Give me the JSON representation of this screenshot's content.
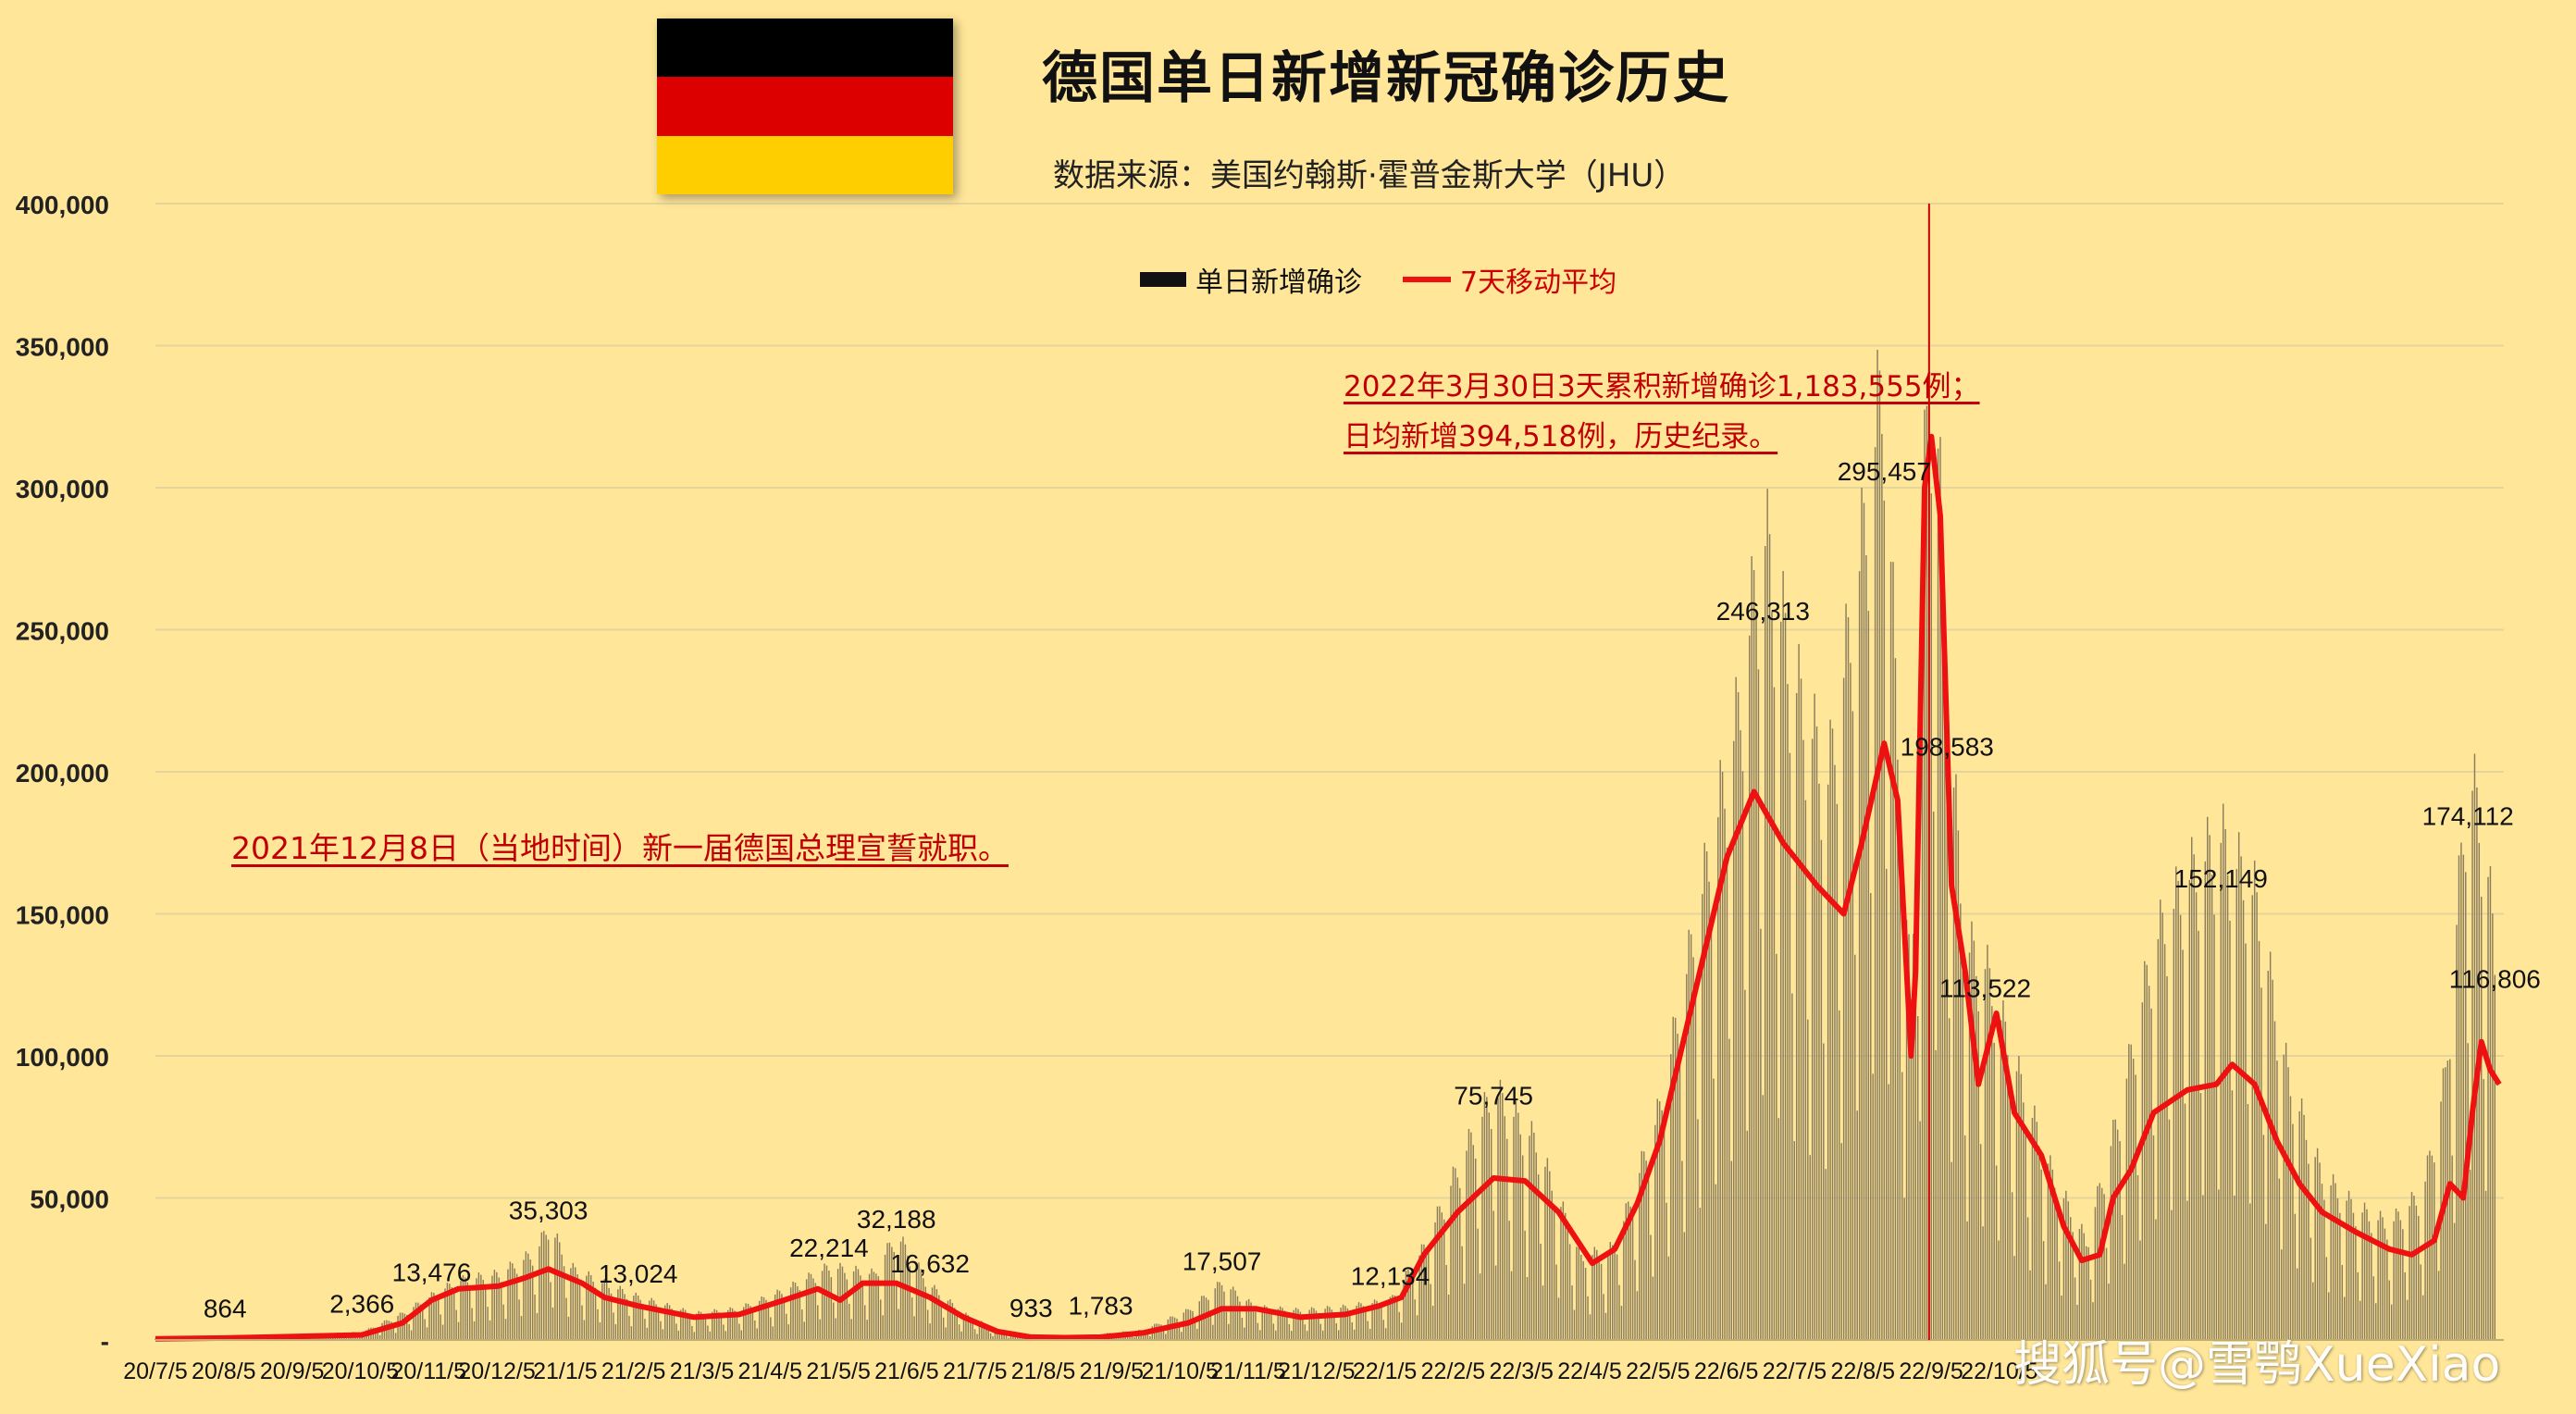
{
  "title": "德国单日新增新冠确诊历史",
  "subtitle": "数据来源：美国约翰斯·霍普金斯大学（JHU）",
  "watermark": "搜狐号@雪鹗XueXiao",
  "flag_colors": [
    "#000000",
    "#dd0000",
    "#ffce00"
  ],
  "colors": {
    "background": "#ffe699",
    "bars": "#8c7e5c",
    "line": "#ee1111",
    "annotation": "#c00000",
    "grid": "#e6d59a"
  },
  "annotations": {
    "record_line1": "2022年3月30日3天累积新增确诊1,183,555例；",
    "record_line2": "日均新增394,518例，历史纪录。",
    "chancellor": "2021年12月8日（当地时间）新一届德国总理宣誓就职。"
  },
  "chart_data": {
    "type": "bar",
    "title": "德国单日新增新冠确诊历史",
    "xlabel": "",
    "ylabel": "",
    "ylim": [
      0,
      400000
    ],
    "yticks": [
      0,
      50000,
      100000,
      150000,
      200000,
      250000,
      300000,
      350000,
      400000
    ],
    "ytick_labels": [
      "-",
      "50,000",
      "100,000",
      "150,000",
      "200,000",
      "250,000",
      "300,000",
      "350,000",
      "400,000"
    ],
    "xtick_labels": [
      "20/7/5",
      "20/8/5",
      "20/9/5",
      "20/10/5",
      "20/11/5",
      "20/12/5",
      "21/1/5",
      "21/2/5",
      "21/3/5",
      "21/4/5",
      "21/5/5",
      "21/6/5",
      "21/7/5",
      "21/8/5",
      "21/9/5",
      "21/10/5",
      "21/11/5",
      "21/12/5",
      "22/1/5",
      "22/2/5",
      "22/3/5",
      "22/4/5",
      "22/5/5",
      "22/6/5",
      "22/7/5",
      "22/8/5",
      "22/9/5",
      "22/10/5"
    ],
    "grid": true,
    "legend": "top-center",
    "series": [
      {
        "name": "单日新增确诊",
        "type": "bar",
        "anchors": [
          [
            0,
            500
          ],
          [
            31,
            864
          ],
          [
            62,
            1500
          ],
          [
            92,
            2366
          ],
          [
            110,
            8000
          ],
          [
            123,
            13476
          ],
          [
            135,
            18000
          ],
          [
            153,
            20000
          ],
          [
            170,
            27000
          ],
          [
            175,
            35303
          ],
          [
            185,
            22000
          ],
          [
            197,
            18000
          ],
          [
            215,
            13024
          ],
          [
            240,
            8000
          ],
          [
            260,
            9500
          ],
          [
            280,
            15000
          ],
          [
            300,
            22214
          ],
          [
            320,
            20000
          ],
          [
            330,
            32188
          ],
          [
            345,
            16632
          ],
          [
            360,
            8000
          ],
          [
            375,
            3000
          ],
          [
            390,
            933
          ],
          [
            405,
            700
          ],
          [
            421,
            1783
          ],
          [
            440,
            3000
          ],
          [
            460,
            9000
          ],
          [
            475,
            17507
          ],
          [
            490,
            10000
          ],
          [
            510,
            9000
          ],
          [
            530,
            10000
          ],
          [
            550,
            12134
          ],
          [
            565,
            28000
          ],
          [
            580,
            52000
          ],
          [
            596,
            75745
          ],
          [
            615,
            60000
          ],
          [
            635,
            25000
          ],
          [
            650,
            28000
          ],
          [
            670,
            70000
          ],
          [
            690,
            140000
          ],
          [
            705,
            190000
          ],
          [
            716,
            246313
          ],
          [
            730,
            200000
          ],
          [
            745,
            170000
          ],
          [
            760,
            240000
          ],
          [
            770,
            295457
          ],
          [
            775,
            200000
          ],
          [
            782,
            100000
          ],
          [
            787,
            250000
          ],
          [
            792,
            310000
          ],
          [
            798,
            198583
          ],
          [
            806,
            120000
          ],
          [
            815,
            113522
          ],
          [
            830,
            80000
          ],
          [
            845,
            50000
          ],
          [
            860,
            30000
          ],
          [
            875,
            70000
          ],
          [
            890,
            120000
          ],
          [
            905,
            140000
          ],
          [
            920,
            152149
          ],
          [
            935,
            135000
          ],
          [
            950,
            80000
          ],
          [
            965,
            50000
          ],
          [
            980,
            40000
          ],
          [
            995,
            35000
          ],
          [
            1010,
            45000
          ],
          [
            1020,
            80000
          ],
          [
            1030,
            174112
          ],
          [
            1038,
            150000
          ],
          [
            1042,
            116806
          ]
        ]
      },
      {
        "name": "7天移动平均",
        "type": "line",
        "points": [
          [
            0,
            400
          ],
          [
            31,
            700
          ],
          [
            62,
            1200
          ],
          [
            92,
            1800
          ],
          [
            110,
            6000
          ],
          [
            123,
            14000
          ],
          [
            135,
            18000
          ],
          [
            153,
            19000
          ],
          [
            165,
            22000
          ],
          [
            175,
            25000
          ],
          [
            190,
            20000
          ],
          [
            200,
            15000
          ],
          [
            215,
            12000
          ],
          [
            240,
            8000
          ],
          [
            260,
            9000
          ],
          [
            280,
            14000
          ],
          [
            295,
            18000
          ],
          [
            305,
            14000
          ],
          [
            315,
            20000
          ],
          [
            330,
            20000
          ],
          [
            345,
            15000
          ],
          [
            360,
            8000
          ],
          [
            375,
            3000
          ],
          [
            390,
            1000
          ],
          [
            405,
            800
          ],
          [
            421,
            1000
          ],
          [
            440,
            2500
          ],
          [
            460,
            6000
          ],
          [
            475,
            11000
          ],
          [
            490,
            11000
          ],
          [
            510,
            8000
          ],
          [
            530,
            9000
          ],
          [
            545,
            12000
          ],
          [
            555,
            15000
          ],
          [
            565,
            30000
          ],
          [
            580,
            45000
          ],
          [
            596,
            57000
          ],
          [
            610,
            56000
          ],
          [
            625,
            45000
          ],
          [
            640,
            27000
          ],
          [
            650,
            32000
          ],
          [
            660,
            48000
          ],
          [
            670,
            70000
          ],
          [
            685,
            120000
          ],
          [
            700,
            170000
          ],
          [
            712,
            193000
          ],
          [
            725,
            175000
          ],
          [
            740,
            160000
          ],
          [
            752,
            150000
          ],
          [
            760,
            175000
          ],
          [
            770,
            210000
          ],
          [
            776,
            190000
          ],
          [
            782,
            100000
          ],
          [
            784,
            130000
          ],
          [
            788,
            300000
          ],
          [
            791,
            318000
          ],
          [
            795,
            290000
          ],
          [
            800,
            160000
          ],
          [
            806,
            130000
          ],
          [
            812,
            90000
          ],
          [
            820,
            115000
          ],
          [
            828,
            80000
          ],
          [
            840,
            65000
          ],
          [
            850,
            40000
          ],
          [
            858,
            28000
          ],
          [
            866,
            30000
          ],
          [
            872,
            50000
          ],
          [
            880,
            60000
          ],
          [
            890,
            80000
          ],
          [
            905,
            88000
          ],
          [
            918,
            90000
          ],
          [
            925,
            97000
          ],
          [
            935,
            90000
          ],
          [
            945,
            70000
          ],
          [
            955,
            55000
          ],
          [
            965,
            45000
          ],
          [
            980,
            38000
          ],
          [
            995,
            32000
          ],
          [
            1005,
            30000
          ],
          [
            1015,
            35000
          ],
          [
            1022,
            55000
          ],
          [
            1028,
            50000
          ],
          [
            1032,
            80000
          ],
          [
            1036,
            105000
          ],
          [
            1040,
            95000
          ],
          [
            1044,
            90000
          ]
        ]
      }
    ],
    "data_labels": [
      {
        "x": 31,
        "text": "864"
      },
      {
        "x": 92,
        "text": "2,366"
      },
      {
        "x": 123,
        "text": "13,476"
      },
      {
        "x": 175,
        "text": "35,303"
      },
      {
        "x": 215,
        "text": "13,024"
      },
      {
        "x": 300,
        "text": "22,214"
      },
      {
        "x": 330,
        "text": "32,188"
      },
      {
        "x": 345,
        "text": "16,632"
      },
      {
        "x": 390,
        "text": "933"
      },
      {
        "x": 421,
        "text": "1,783"
      },
      {
        "x": 475,
        "text": "17,507"
      },
      {
        "x": 550,
        "text": "12,134"
      },
      {
        "x": 596,
        "text": "75,745"
      },
      {
        "x": 716,
        "text": "246,313"
      },
      {
        "x": 770,
        "text": "295,457"
      },
      {
        "x": 798,
        "text": "198,583"
      },
      {
        "x": 815,
        "text": "113,522"
      },
      {
        "x": 920,
        "text": "152,149"
      },
      {
        "x": 1030,
        "text": "174,112"
      },
      {
        "x": 1042,
        "text": "116,806"
      }
    ],
    "vertical_marker_x": 790
  }
}
